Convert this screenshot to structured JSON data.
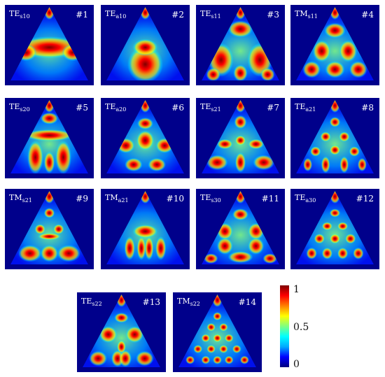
{
  "colormap": {
    "stops": [
      "#00007f",
      "#0000ff",
      "#00aaff",
      "#00ffff",
      "#80ff80",
      "#ffff00",
      "#ff8000",
      "#ff0000",
      "#7f0000"
    ],
    "background": "#00008b",
    "tick_labels": [
      "1",
      "0.5",
      "0"
    ]
  },
  "panels": [
    {
      "name": "TE",
      "sub": "s10",
      "num": "#1",
      "pattern": "band"
    },
    {
      "name": "TE",
      "sub": "a10",
      "num": "#2",
      "pattern": "arch"
    },
    {
      "name": "TE",
      "sub": "s11",
      "num": "#3",
      "pattern": "tri-arms"
    },
    {
      "name": "TM",
      "sub": "s11",
      "num": "#4",
      "pattern": "tri-lobes"
    },
    {
      "name": "TE",
      "sub": "s20",
      "num": "#5",
      "pattern": "nested-arch"
    },
    {
      "name": "TE",
      "sub": "a20",
      "num": "#6",
      "pattern": "spots-3"
    },
    {
      "name": "TE",
      "sub": "s21",
      "num": "#7",
      "pattern": "star"
    },
    {
      "name": "TE",
      "sub": "a21",
      "num": "#8",
      "pattern": "spots-grid"
    },
    {
      "name": "TM",
      "sub": "s21",
      "num": "#9",
      "pattern": "face"
    },
    {
      "name": "TM",
      "sub": "a21",
      "num": "#10",
      "pattern": "columns"
    },
    {
      "name": "TE",
      "sub": "s30",
      "num": "#11",
      "pattern": "hexagon"
    },
    {
      "name": "TE",
      "sub": "a30",
      "num": "#12",
      "pattern": "spots-ring"
    },
    {
      "name": "TE",
      "sub": "s22",
      "num": "#13",
      "pattern": "hex-arms"
    },
    {
      "name": "TM",
      "sub": "s22",
      "num": "#14",
      "pattern": "spots-dense"
    }
  ]
}
